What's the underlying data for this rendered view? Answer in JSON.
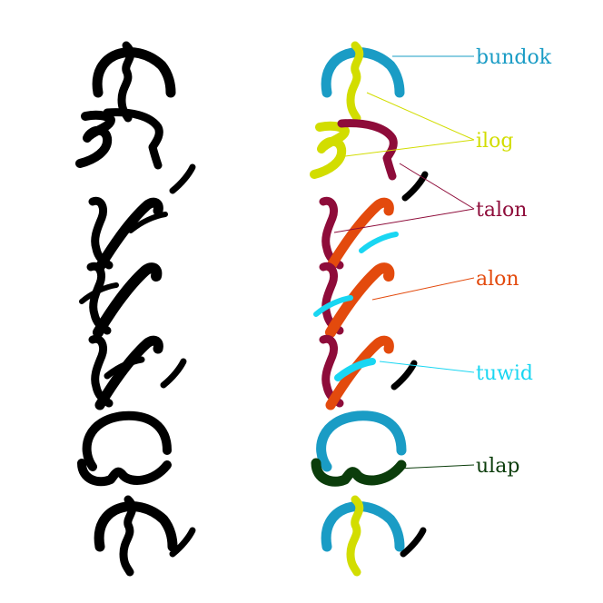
{
  "colors": {
    "ink": "#000000",
    "bundok": "#1a9cc5",
    "ilog": "#d2dd00",
    "talon": "#8e0c3a",
    "alon": "#e34a0d",
    "tuwid": "#19d6f2",
    "ulap": "#0b3d0b"
  },
  "labels": {
    "bundok": "bundok",
    "ilog": "ilog",
    "talon": "talon",
    "alon": "alon",
    "tuwid": "tuwid",
    "ulap": "ulap"
  }
}
